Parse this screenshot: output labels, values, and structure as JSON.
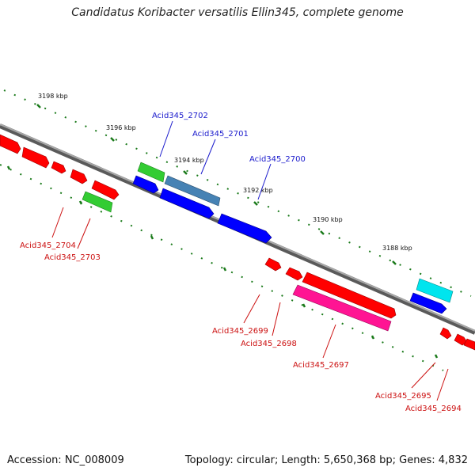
{
  "title": "Candidatus Koribacter versatilis Ellin345, complete genome",
  "footer": {
    "accession": "Accession: NC_008009",
    "summary": "Topology: circular; Length: 5,650,368 bp; Genes: 4,832"
  },
  "ticks": [
    {
      "label": "3198 kbp"
    },
    {
      "label": "3196 kbp"
    },
    {
      "label": "3194 kbp"
    },
    {
      "label": "3192 kbp"
    },
    {
      "label": "3190 kbp"
    },
    {
      "label": "3188 kbp"
    }
  ],
  "gene_labels_top": [
    {
      "name": "Acid345_2702"
    },
    {
      "name": "Acid345_2701"
    },
    {
      "name": "Acid345_2700"
    }
  ],
  "gene_labels_bottom": [
    {
      "name": "Acid345_2704"
    },
    {
      "name": "Acid345_2703"
    },
    {
      "name": "Acid345_2699"
    },
    {
      "name": "Acid345_2698"
    },
    {
      "name": "Acid345_2697"
    },
    {
      "name": "Acid345_2695"
    },
    {
      "name": "Acid345_2694"
    }
  ],
  "colors": {
    "forward_strand": "#0000ff",
    "reverse_strand": "#ff0000",
    "green_gene": "#33cc33",
    "steel_gene": "#4682b4",
    "cyan_gene": "#00e5ee",
    "pink_gene": "#ff1493",
    "backbone": "#808080",
    "tick_marks": "#1a7a1a"
  }
}
